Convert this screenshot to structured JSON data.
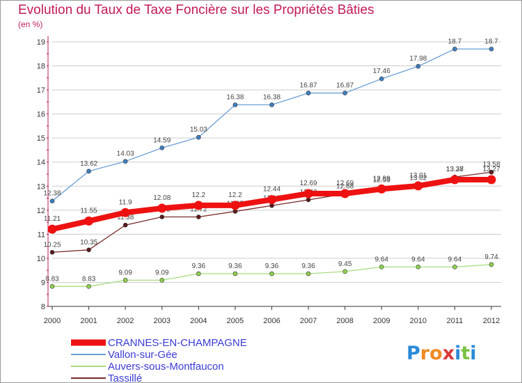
{
  "colors": {
    "title": "#c2185b",
    "axis": "#c2185b",
    "grid": "#cccccc",
    "legend_text": "#3b3bd6"
  },
  "chart_data": {
    "type": "line",
    "title": "Evolution du Taux de Taxe Foncière sur les Propriétés Bâties",
    "ylabel": "(en %)",
    "xlabel": "",
    "x": [
      "2000",
      "2001",
      "2002",
      "2003",
      "2004",
      "2005",
      "2006",
      "2007",
      "2008",
      "2009",
      "2010",
      "2011",
      "2012"
    ],
    "ylim": [
      8,
      19
    ],
    "yticks": [
      "8",
      "9",
      "10",
      "11",
      "12",
      "13",
      "14",
      "15",
      "16",
      "17",
      "18",
      "19"
    ],
    "grid": true,
    "legend_position": "bottom-left",
    "series": [
      {
        "name": "Vallon-sur-Gée",
        "color": "#6a9fd4",
        "marker": "#3e7fc1",
        "values": [
          12.38,
          13.62,
          14.03,
          14.59,
          15.03,
          16.38,
          16.38,
          16.87,
          16.87,
          17.46,
          17.98,
          18.7,
          18.7
        ],
        "labels": [
          "12.38",
          "13.62",
          "14.03",
          "14.59",
          "15.03",
          "16.38",
          "16.38",
          "16.87",
          "16.87",
          "17.46",
          "17.98",
          "18.7",
          "18.7"
        ]
      },
      {
        "name": "Auvers-sous-Montfaucon",
        "color": "#a8dc7e",
        "marker": "#8fd14f",
        "values": [
          8.83,
          8.83,
          9.09,
          9.09,
          9.36,
          9.36,
          9.36,
          9.36,
          9.45,
          9.64,
          9.64,
          9.64,
          9.74
        ],
        "labels": [
          "8.83",
          "8.83",
          "9.09",
          "9.09",
          "9.36",
          "9.36",
          "9.36",
          "9.36",
          "9.45",
          "9.64",
          "9.64",
          "9.64",
          "9.74"
        ]
      },
      {
        "name": "Tassillé",
        "color": "#7a2a2a",
        "marker": "#5a1a1a",
        "values": [
          10.25,
          10.35,
          11.38,
          11.72,
          11.72,
          11.95,
          12.19,
          12.43,
          12.68,
          12.93,
          13.02,
          13.38,
          13.58
        ],
        "labels": [
          "10.25",
          "10.35",
          "11.38",
          "11.72",
          "11.72",
          "11.95",
          "12.19",
          "12.43",
          "12.68",
          "12.93",
          "13.02",
          "13.38",
          "13.58"
        ]
      },
      {
        "name": "CRANNES-EN-CHAMPAGNE",
        "color": "#ee1111",
        "marker": "#ee1111",
        "values": [
          11.21,
          11.55,
          11.9,
          12.08,
          12.2,
          12.2,
          12.44,
          12.69,
          12.69,
          12.88,
          13.01,
          13.27,
          13.27
        ],
        "labels": [
          "11.21",
          "11.55",
          "11.9",
          "12.08",
          "12.2",
          "12.2",
          "12.44",
          "12.69",
          "12.69",
          "12.88",
          "13.01",
          "13.27",
          "13.27"
        ]
      }
    ]
  },
  "legend": [
    {
      "name": "CRANNES-EN-CHAMPAGNE",
      "color": "#ee1111"
    },
    {
      "name": "Vallon-sur-Gée",
      "color": "#6a9fd4"
    },
    {
      "name": "Auvers-sous-Montfaucon",
      "color": "#a8dc7e"
    },
    {
      "name": "Tassillé",
      "color": "#7a2a2a"
    }
  ],
  "logo": {
    "letters": [
      "P",
      "r",
      "o",
      "x",
      "i",
      "t",
      "i"
    ],
    "colors": [
      "#2a8ad8",
      "#f08a24",
      "#f08a24",
      "#d83a3a",
      "#2a8ad8",
      "#7ac143",
      "#2a8ad8"
    ]
  }
}
